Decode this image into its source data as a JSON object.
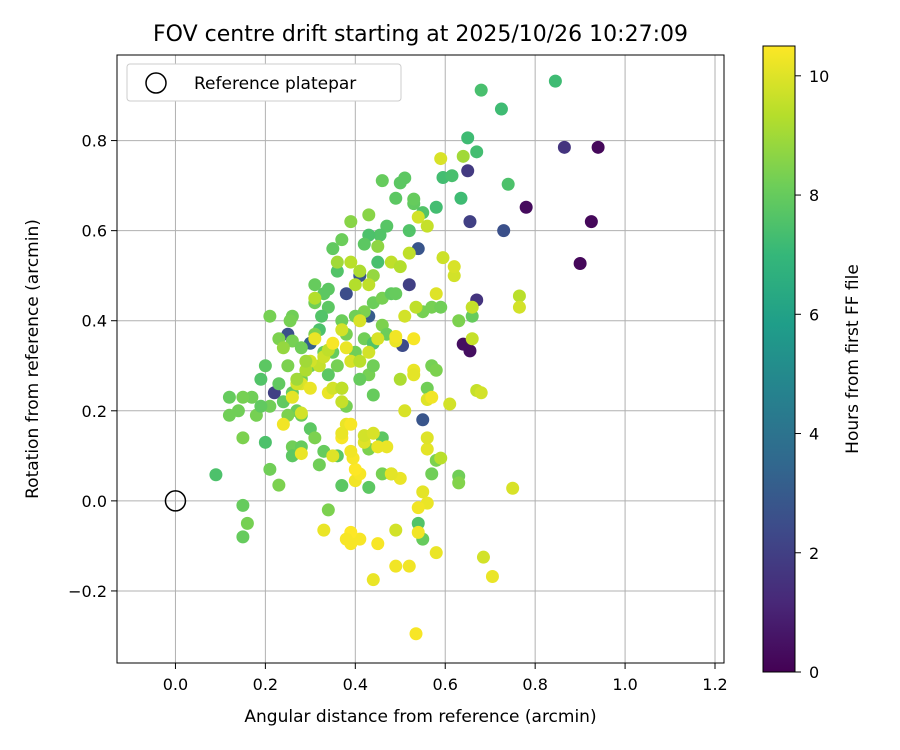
{
  "chart_data": {
    "type": "scatter",
    "title": "FOV centre drift starting at 2025/10/26 10:27:09",
    "xlabel": "Angular distance from reference (arcmin)",
    "ylabel": "Rotation from reference (arcmin)",
    "xlim": [
      -0.13,
      1.22
    ],
    "ylim": [
      -0.36,
      0.99
    ],
    "xticks": [
      0.0,
      0.2,
      0.4,
      0.6,
      0.8,
      1.0,
      1.2
    ],
    "xtick_labels": [
      "0.0",
      "0.2",
      "0.4",
      "0.6",
      "0.8",
      "1.0",
      "1.2"
    ],
    "yticks": [
      -0.2,
      0.0,
      0.2,
      0.4,
      0.6,
      0.8
    ],
    "ytick_labels": [
      "−0.2",
      "0.0",
      "0.2",
      "0.4",
      "0.6",
      "0.8"
    ],
    "grid": true,
    "legend": {
      "position": "top-left",
      "entries": [
        {
          "label": "Reference platepar",
          "marker": "open-circle"
        }
      ]
    },
    "reference_point": [
      0.0,
      0.0
    ],
    "colorbar": {
      "label": "Hours from first FF file",
      "range": [
        0,
        10.5
      ],
      "ticks": [
        0,
        2,
        4,
        6,
        8,
        10
      ],
      "tick_labels": [
        "0",
        "2",
        "4",
        "6",
        "8",
        "10"
      ],
      "colormap": [
        "#440154",
        "#482878",
        "#3e4989",
        "#31688e",
        "#26828e",
        "#1f9e89",
        "#35b779",
        "#6ece58",
        "#b5de2b",
        "#fde725"
      ]
    },
    "points": [
      [
        0.94,
        0.785,
        0.2
      ],
      [
        0.925,
        0.62,
        0.2
      ],
      [
        0.9,
        0.527,
        0.2
      ],
      [
        0.78,
        0.652,
        0.3
      ],
      [
        0.655,
        0.333,
        0.4
      ],
      [
        0.64,
        0.348,
        0.4
      ],
      [
        0.865,
        0.785,
        1.6
      ],
      [
        0.67,
        0.446,
        1.6
      ],
      [
        0.65,
        0.733,
        1.8
      ],
      [
        0.655,
        0.62,
        2.0
      ],
      [
        0.73,
        0.6,
        2.6
      ],
      [
        0.54,
        0.56,
        2.8
      ],
      [
        0.55,
        0.18,
        2.8
      ],
      [
        0.505,
        0.345,
        2.4
      ],
      [
        0.52,
        0.48,
        2.0
      ],
      [
        0.38,
        0.46,
        2.5
      ],
      [
        0.25,
        0.37,
        2.6
      ],
      [
        0.22,
        0.24,
        2.0
      ],
      [
        0.41,
        0.5,
        2.8
      ],
      [
        0.43,
        0.41,
        3.0
      ],
      [
        0.3,
        0.35,
        3.2
      ],
      [
        0.845,
        0.932,
        7.2
      ],
      [
        0.68,
        0.912,
        7.4
      ],
      [
        0.725,
        0.87,
        7.2
      ],
      [
        0.65,
        0.806,
        7.2
      ],
      [
        0.67,
        0.775,
        7.3
      ],
      [
        0.74,
        0.703,
        7.5
      ],
      [
        0.635,
        0.672,
        7.2
      ],
      [
        0.595,
        0.718,
        7.3
      ],
      [
        0.615,
        0.722,
        7.4
      ],
      [
        0.58,
        0.652,
        7.3
      ],
      [
        0.5,
        0.706,
        7.8
      ],
      [
        0.51,
        0.717,
        7.8
      ],
      [
        0.53,
        0.66,
        7.9
      ],
      [
        0.53,
        0.67,
        8.0
      ],
      [
        0.55,
        0.64,
        7.6
      ],
      [
        0.49,
        0.672,
        7.8
      ],
      [
        0.46,
        0.711,
        8.0
      ],
      [
        0.47,
        0.61,
        7.7
      ],
      [
        0.52,
        0.6,
        7.6
      ],
      [
        0.455,
        0.59,
        7.6
      ],
      [
        0.43,
        0.59,
        7.5
      ],
      [
        0.42,
        0.57,
        7.8
      ],
      [
        0.45,
        0.53,
        7.4
      ],
      [
        0.37,
        0.58,
        8.1
      ],
      [
        0.36,
        0.51,
        7.6
      ],
      [
        0.35,
        0.56,
        7.9
      ],
      [
        0.34,
        0.47,
        7.8
      ],
      [
        0.31,
        0.48,
        8.0
      ],
      [
        0.33,
        0.46,
        7.8
      ],
      [
        0.34,
        0.43,
        7.8
      ],
      [
        0.31,
        0.44,
        8.2
      ],
      [
        0.325,
        0.41,
        7.6
      ],
      [
        0.32,
        0.38,
        7.5
      ],
      [
        0.26,
        0.41,
        8.2
      ],
      [
        0.255,
        0.4,
        8.3
      ],
      [
        0.21,
        0.41,
        8.3
      ],
      [
        0.23,
        0.36,
        8.4
      ],
      [
        0.26,
        0.355,
        8.3
      ],
      [
        0.25,
        0.3,
        8.4
      ],
      [
        0.28,
        0.34,
        8.2
      ],
      [
        0.3,
        0.3,
        8.2
      ],
      [
        0.31,
        0.37,
        8.4
      ],
      [
        0.33,
        0.33,
        8.0
      ],
      [
        0.34,
        0.28,
        7.8
      ],
      [
        0.28,
        0.27,
        8.2
      ],
      [
        0.26,
        0.24,
        8.0
      ],
      [
        0.27,
        0.2,
        8.1
      ],
      [
        0.25,
        0.19,
        8.4
      ],
      [
        0.24,
        0.22,
        7.9
      ],
      [
        0.23,
        0.26,
        7.9
      ],
      [
        0.2,
        0.3,
        7.8
      ],
      [
        0.19,
        0.27,
        7.6
      ],
      [
        0.17,
        0.23,
        8.2
      ],
      [
        0.18,
        0.19,
        8.3
      ],
      [
        0.15,
        0.23,
        8.3
      ],
      [
        0.14,
        0.2,
        8.2
      ],
      [
        0.12,
        0.23,
        8.0
      ],
      [
        0.12,
        0.19,
        8.2
      ],
      [
        0.21,
        0.21,
        8.2
      ],
      [
        0.19,
        0.21,
        7.9
      ],
      [
        0.2,
        0.13,
        7.5
      ],
      [
        0.15,
        0.14,
        8.4
      ],
      [
        0.21,
        0.07,
        8.2
      ],
      [
        0.23,
        0.035,
        8.4
      ],
      [
        0.09,
        0.058,
        7.5
      ],
      [
        0.15,
        -0.01,
        8.0
      ],
      [
        0.16,
        -0.05,
        8.3
      ],
      [
        0.15,
        -0.08,
        8.0
      ],
      [
        0.28,
        0.19,
        8.1
      ],
      [
        0.3,
        0.16,
        7.8
      ],
      [
        0.31,
        0.14,
        8.4
      ],
      [
        0.26,
        0.12,
        8.2
      ],
      [
        0.26,
        0.1,
        7.8
      ],
      [
        0.28,
        0.12,
        8.0
      ],
      [
        0.32,
        0.08,
        8.2
      ],
      [
        0.36,
        0.1,
        7.8
      ],
      [
        0.37,
        0.034,
        7.8
      ],
      [
        0.34,
        -0.02,
        8.4
      ],
      [
        0.33,
        0.11,
        8.0
      ],
      [
        0.37,
        0.25,
        8.1
      ],
      [
        0.38,
        0.21,
        8.3
      ],
      [
        0.4,
        0.33,
        8.2
      ],
      [
        0.42,
        0.36,
        8.2
      ],
      [
        0.44,
        0.35,
        7.6
      ],
      [
        0.44,
        0.44,
        8.1
      ],
      [
        0.46,
        0.45,
        8.3
      ],
      [
        0.48,
        0.46,
        7.9
      ],
      [
        0.42,
        0.42,
        8.4
      ],
      [
        0.4,
        0.41,
        8.2
      ],
      [
        0.37,
        0.4,
        8.1
      ],
      [
        0.38,
        0.37,
        8.3
      ],
      [
        0.35,
        0.33,
        8.0
      ],
      [
        0.36,
        0.3,
        8.3
      ],
      [
        0.43,
        0.28,
        8.3
      ],
      [
        0.44,
        0.3,
        8.2
      ],
      [
        0.41,
        0.27,
        8.0
      ],
      [
        0.44,
        0.235,
        8.0
      ],
      [
        0.46,
        0.14,
        7.8
      ],
      [
        0.43,
        0.115,
        8.4
      ],
      [
        0.43,
        0.03,
        7.8
      ],
      [
        0.46,
        0.06,
        8.3
      ],
      [
        0.48,
        0.06,
        8.2
      ],
      [
        0.55,
        -0.085,
        8.0
      ],
      [
        0.54,
        -0.05,
        7.6
      ],
      [
        0.56,
        0.25,
        8.2
      ],
      [
        0.57,
        0.3,
        8.3
      ],
      [
        0.58,
        0.29,
        8.4
      ],
      [
        0.63,
        0.4,
        8.4
      ],
      [
        0.66,
        0.41,
        8.0
      ],
      [
        0.57,
        0.43,
        8.3
      ],
      [
        0.59,
        0.43,
        8.2
      ],
      [
        0.55,
        0.42,
        8.3
      ],
      [
        0.57,
        0.06,
        8.2
      ],
      [
        0.58,
        0.09,
        8.4
      ],
      [
        0.63,
        0.055,
        8.2
      ],
      [
        0.63,
        0.04,
        8.5
      ],
      [
        0.49,
        0.46,
        8.0
      ],
      [
        0.46,
        0.39,
        8.4
      ],
      [
        0.47,
        0.37,
        8.1
      ],
      [
        0.39,
        0.62,
        8.6
      ],
      [
        0.43,
        0.635,
        8.6
      ],
      [
        0.45,
        0.565,
        8.7
      ],
      [
        0.44,
        0.5,
        8.8
      ],
      [
        0.41,
        0.51,
        9.2
      ],
      [
        0.39,
        0.53,
        9.4
      ],
      [
        0.36,
        0.53,
        9.0
      ],
      [
        0.4,
        0.48,
        9.3
      ],
      [
        0.43,
        0.48,
        9.5
      ],
      [
        0.48,
        0.53,
        9.5
      ],
      [
        0.5,
        0.52,
        9.3
      ],
      [
        0.52,
        0.55,
        9.5
      ],
      [
        0.51,
        0.41,
        9.8
      ],
      [
        0.535,
        0.43,
        9.5
      ],
      [
        0.56,
        0.61,
        9.6
      ],
      [
        0.595,
        0.54,
        9.7
      ],
      [
        0.62,
        0.5,
        9.8
      ],
      [
        0.62,
        0.52,
        9.9
      ],
      [
        0.59,
        0.76,
        9.9
      ],
      [
        0.64,
        0.765,
        9.0
      ],
      [
        0.54,
        0.63,
        9.8
      ],
      [
        0.58,
        0.46,
        10.0
      ],
      [
        0.66,
        0.43,
        9.6
      ],
      [
        0.66,
        0.36,
        9.6
      ],
      [
        0.765,
        0.455,
        9.4
      ],
      [
        0.765,
        0.43,
        9.8
      ],
      [
        0.67,
        0.245,
        9.6
      ],
      [
        0.68,
        0.24,
        9.8
      ],
      [
        0.61,
        0.215,
        9.8
      ],
      [
        0.56,
        0.225,
        10.0
      ],
      [
        0.51,
        0.2,
        9.9
      ],
      [
        0.56,
        0.115,
        10.1
      ],
      [
        0.56,
        0.14,
        10.0
      ],
      [
        0.59,
        0.095,
        9.4
      ],
      [
        0.55,
        0.02,
        10.1
      ],
      [
        0.56,
        -0.005,
        10.2
      ],
      [
        0.54,
        -0.015,
        10.3
      ],
      [
        0.58,
        -0.115,
        10.2
      ],
      [
        0.54,
        -0.07,
        10.3
      ],
      [
        0.685,
        -0.125,
        9.8
      ],
      [
        0.705,
        -0.168,
        10.2
      ],
      [
        0.75,
        0.028,
        9.9
      ],
      [
        0.535,
        -0.295,
        10.4
      ],
      [
        0.44,
        -0.175,
        10.2
      ],
      [
        0.45,
        -0.095,
        10.4
      ],
      [
        0.49,
        -0.145,
        10.3
      ],
      [
        0.52,
        -0.145,
        10.3
      ],
      [
        0.49,
        -0.065,
        9.8
      ],
      [
        0.5,
        0.05,
        10.2
      ],
      [
        0.41,
        -0.085,
        10.4
      ],
      [
        0.39,
        -0.095,
        10.4
      ],
      [
        0.39,
        -0.07,
        10.5
      ],
      [
        0.38,
        -0.085,
        10.4
      ],
      [
        0.4,
        0.045,
        10.3
      ],
      [
        0.41,
        0.06,
        10.4
      ],
      [
        0.4,
        0.07,
        10.5
      ],
      [
        0.395,
        0.095,
        10.4
      ],
      [
        0.39,
        0.11,
        10.3
      ],
      [
        0.37,
        0.14,
        10.4
      ],
      [
        0.37,
        0.15,
        10.2
      ],
      [
        0.38,
        0.17,
        10.2
      ],
      [
        0.39,
        0.17,
        10.4
      ],
      [
        0.42,
        0.13,
        10.0
      ],
      [
        0.42,
        0.145,
        9.8
      ],
      [
        0.44,
        0.15,
        9.9
      ],
      [
        0.45,
        0.12,
        10.2
      ],
      [
        0.47,
        0.12,
        10.2
      ],
      [
        0.48,
        0.06,
        10.1
      ],
      [
        0.33,
        -0.065,
        10.2
      ],
      [
        0.35,
        0.1,
        10.0
      ],
      [
        0.34,
        0.24,
        10.2
      ],
      [
        0.35,
        0.25,
        9.8
      ],
      [
        0.37,
        0.22,
        9.6
      ],
      [
        0.37,
        0.25,
        9.5
      ],
      [
        0.32,
        0.3,
        9.6
      ],
      [
        0.33,
        0.32,
        9.7
      ],
      [
        0.31,
        0.36,
        10.2
      ],
      [
        0.3,
        0.31,
        9.8
      ],
      [
        0.29,
        0.29,
        9.2
      ],
      [
        0.28,
        0.26,
        10.0
      ],
      [
        0.27,
        0.26,
        9.8
      ],
      [
        0.26,
        0.23,
        10.1
      ],
      [
        0.28,
        0.195,
        9.8
      ],
      [
        0.24,
        0.17,
        10.3
      ],
      [
        0.3,
        0.25,
        10.2
      ],
      [
        0.34,
        0.335,
        9.5
      ],
      [
        0.35,
        0.35,
        10.4
      ],
      [
        0.37,
        0.38,
        9.8
      ],
      [
        0.39,
        0.31,
        9.9
      ],
      [
        0.38,
        0.34,
        10.2
      ],
      [
        0.41,
        0.31,
        9.4
      ],
      [
        0.41,
        0.4,
        9.9
      ],
      [
        0.43,
        0.33,
        9.8
      ],
      [
        0.45,
        0.36,
        9.9
      ],
      [
        0.49,
        0.355,
        10.2
      ],
      [
        0.49,
        0.365,
        10.3
      ],
      [
        0.53,
        0.36,
        10.4
      ],
      [
        0.53,
        0.29,
        10.2
      ],
      [
        0.53,
        0.28,
        10.1
      ],
      [
        0.57,
        0.23,
        10.3
      ],
      [
        0.29,
        0.31,
        9.0
      ],
      [
        0.28,
        0.105,
        10.2
      ],
      [
        0.31,
        0.45,
        9.3
      ],
      [
        0.27,
        0.27,
        9.0
      ],
      [
        0.24,
        0.34,
        8.8
      ],
      [
        0.5,
        0.27,
        9.2
      ]
    ]
  }
}
